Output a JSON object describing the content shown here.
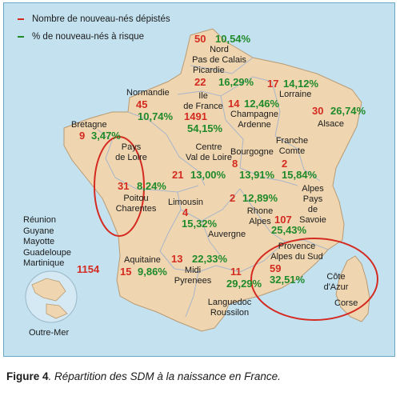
{
  "legend": {
    "newborns_label": "Nombre de nouveau-nés dépistés",
    "risk_label": "% de nouveau-nés à risque",
    "newborns_color": "#d42a20",
    "risk_color": "#1f8a2a"
  },
  "regions": {
    "nord": {
      "name": "Nord\nPas de Calais",
      "count": "50",
      "pct": "10,54%"
    },
    "picardie": {
      "name": "Picardie",
      "count": "22",
      "pct": "16,29%"
    },
    "lorraine": {
      "name": "Lorraine",
      "count": "17",
      "pct": "14,12%"
    },
    "normandie": {
      "name": "Normandie",
      "count": "45",
      "pct": "10,74%"
    },
    "idf": {
      "name": "Ile\nde France",
      "count": "1491",
      "pct": "54,15%"
    },
    "champagne": {
      "name": "Champagne\nArdenne",
      "count": "14",
      "pct": "12,46%"
    },
    "alsace": {
      "name": "Alsace",
      "count": "30",
      "pct": "26,74%"
    },
    "bretagne": {
      "name": "Bretagne",
      "count": "9",
      "pct": "3,47%"
    },
    "pays_loire": {
      "name": "Pays\nde Loire",
      "count": "31",
      "pct": "8,24%"
    },
    "centre": {
      "name": "Centre\nVal de Loire",
      "count": "21",
      "pct": "13,00%"
    },
    "bourgogne": {
      "name": "Bourgogne",
      "count": "8",
      "pct": "13,91%"
    },
    "franche_comte": {
      "name": "Franche\nComte",
      "count": "2",
      "pct": "15,84%"
    },
    "poitou": {
      "name": "Poitou\nCharentes"
    },
    "limousin": {
      "name": "Limousin",
      "count": "4",
      "pct": "15,32%"
    },
    "auvergne": {
      "name": "Auvergne",
      "count": "2",
      "pct": "12,89%"
    },
    "rhone_alpes": {
      "name": "Rhone\nAlpes"
    },
    "savoie": {
      "name": "Alpes\nPays\nde Savoie",
      "count": "107",
      "pct": "25,43%"
    },
    "aquitaine": {
      "name": "Aquitaine",
      "count": "15",
      "pct": "9,86%"
    },
    "midi": {
      "name": "Midi\nPyrenees",
      "count": "13",
      "pct": "22,33%"
    },
    "languedoc": {
      "name": "Languedoc\nRoussilon",
      "count": "11",
      "pct": "29,29%"
    },
    "paca": {
      "name": "Provence\nAlpes du Sud",
      "count": "59",
      "pct": "32,51%"
    },
    "cote_azur": {
      "name": "Côte\nd'Azur"
    },
    "corse": {
      "name": "Corse"
    }
  },
  "outremer": {
    "territories": "Réunion\nGuyane\nMayotte\nGuadeloupe\nMartinique",
    "count": "1154",
    "label": "Outre-Mer"
  },
  "caption": {
    "figure": "Figure 4",
    "text": ". Répartition des SDM à la naissance en France."
  }
}
